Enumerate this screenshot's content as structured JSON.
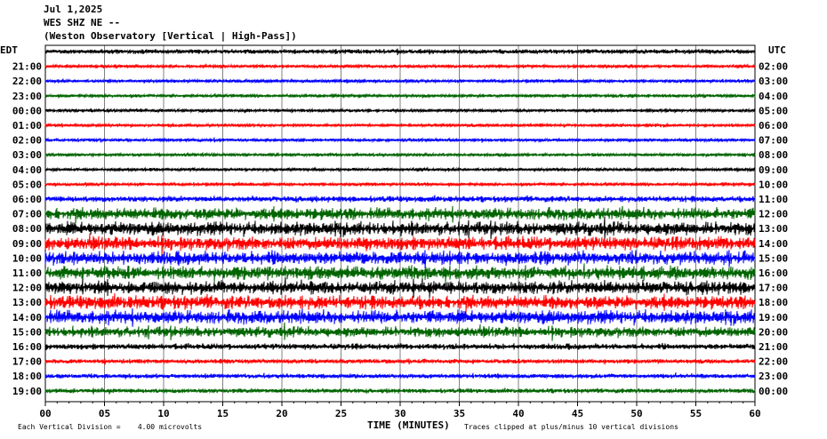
{
  "header": {
    "date": "Jul 1,2025",
    "station": "WES SHZ NE --",
    "observatory": "(Weston Observatory [Vertical | High-Pass])"
  },
  "chart_data": {
    "type": "line",
    "left_timezone": "EDT",
    "right_timezone": "UTC",
    "x_axis_label": "TIME (MINUTES)",
    "x_ticks": [
      "00",
      "05",
      "10",
      "15",
      "20",
      "25",
      "30",
      "35",
      "40",
      "45",
      "50",
      "55",
      "60"
    ],
    "x_range": [
      0,
      60
    ],
    "rows_left": [
      "",
      "21:00",
      "22:00",
      "23:00",
      "00:00",
      "01:00",
      "02:00",
      "03:00",
      "04:00",
      "05:00",
      "06:00",
      "07:00",
      "08:00",
      "09:00",
      "10:00",
      "11:00",
      "12:00",
      "13:00",
      "14:00",
      "15:00",
      "16:00",
      "17:00",
      "18:00",
      "19:00"
    ],
    "rows_right": [
      "",
      "02:00",
      "03:00",
      "04:00",
      "05:00",
      "06:00",
      "07:00",
      "08:00",
      "09:00",
      "10:00",
      "11:00",
      "12:00",
      "13:00",
      "14:00",
      "15:00",
      "16:00",
      "17:00",
      "18:00",
      "19:00",
      "20:00",
      "21:00",
      "22:00",
      "23:00",
      "00:00"
    ],
    "trace_colors": [
      "#000000",
      "#ff0000",
      "#0000ff",
      "#006400"
    ],
    "trace_amplitude": [
      3,
      2,
      2,
      2,
      2,
      2,
      2,
      2,
      2,
      2,
      4,
      8,
      9,
      9,
      9,
      9,
      9,
      9,
      9,
      7,
      4,
      3,
      3,
      3
    ],
    "grid_color": "#808080"
  },
  "footer": {
    "vertical_division": "Each Vertical Division =    4.00 microvolts",
    "clip_note": "Traces clipped at plus/minus 10 vertical divisions"
  }
}
